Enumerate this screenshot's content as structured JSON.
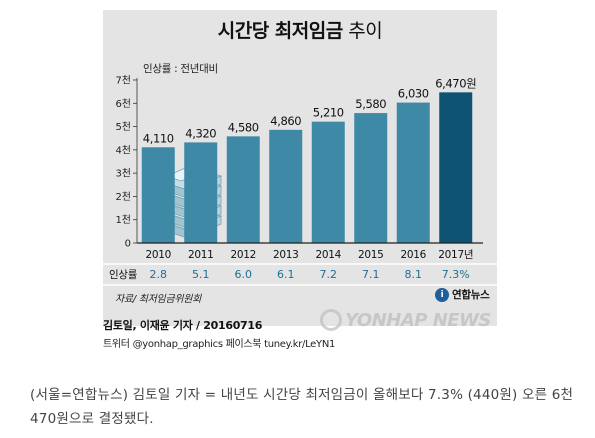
{
  "graphic": {
    "title_bold": "시간당 최저임금",
    "title_light": "추이",
    "source": "자료/ 최저임금위원회",
    "logo_text": "연합뉴스",
    "logo_mark": "i",
    "byline": "김토일, 이재윤 기자 / 20160716",
    "social": "트위터 @yonhap_graphics 페이스북 tuney.kr/LeYN1",
    "watermark": "YONHAP NEWS"
  },
  "caption": "(서울=연합뉴스) 김토일 기자 = 내년도 시간당 최저임금이 올해보다 7.3% (440원) 오른 6천470원으로 결정됐다.",
  "colors": {
    "bar": "#3d89a6",
    "bar_highlight": "#0f5372",
    "rate": "#1e6f95",
    "background": "#e4e4e4"
  },
  "chart_data": {
    "type": "bar",
    "subtitle": "인상률 : 전년대비",
    "categories": [
      "2010",
      "2011",
      "2012",
      "2013",
      "2014",
      "2015",
      "2016",
      "2017년"
    ],
    "value_labels": [
      "4,110",
      "4,320",
      "4,580",
      "4,860",
      "5,210",
      "5,580",
      "6,030",
      "6,470원"
    ],
    "values": [
      4110,
      4320,
      4580,
      4860,
      5210,
      5580,
      6030,
      6470
    ],
    "ylim": [
      0,
      7000
    ],
    "yticks": [
      0,
      1000,
      2000,
      3000,
      4000,
      5000,
      6000,
      7000
    ],
    "ytick_labels": [
      "0",
      "1천",
      "2천",
      "3천",
      "4천",
      "5천",
      "6천",
      "7천"
    ],
    "rate_label": "인상률",
    "rates": [
      "2.8",
      "5.1",
      "6.0",
      "6.1",
      "7.2",
      "7.1",
      "8.1",
      "7.3%"
    ],
    "highlight_index": 7,
    "grid": false
  }
}
